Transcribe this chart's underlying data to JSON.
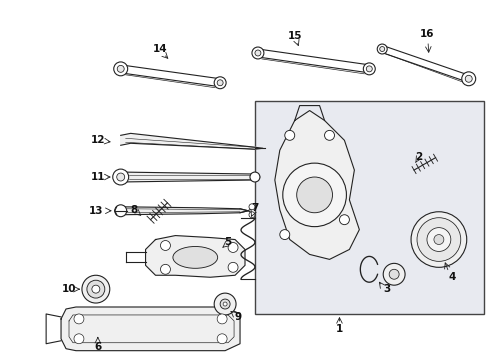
{
  "bg_color": "#ffffff",
  "line_color": "#222222",
  "box_bg": "#e8eaf0",
  "box_border": "#444444",
  "label_color": "#111111",
  "fig_width": 4.9,
  "fig_height": 3.6,
  "dpi": 100
}
